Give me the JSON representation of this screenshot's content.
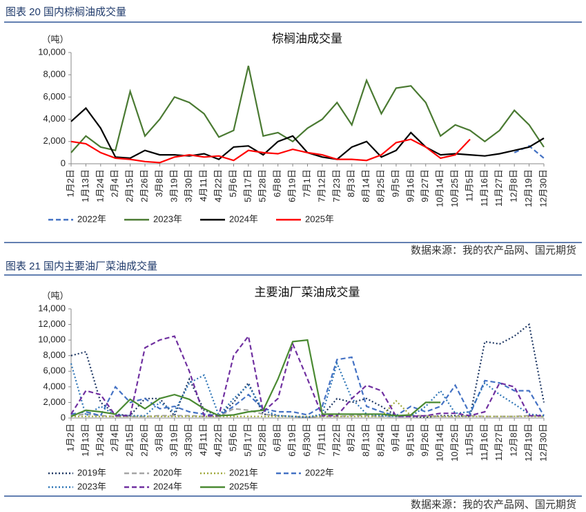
{
  "figures": [
    {
      "caption": "图表 20 国内棕榈油成交量",
      "source": "数据来源：我的农产品网、国元期货"
    },
    {
      "caption": "图表 21 国内主要油厂菜油成交量",
      "source": "数据来源：我的农产品网、国元期货"
    }
  ],
  "chart_data": [
    {
      "type": "line",
      "title": "棕榈油成交量",
      "y_unit": "（吨）",
      "categories": [
        "1月2日",
        "1月13日",
        "1月24日",
        "2月4日",
        "2月15日",
        "2月26日",
        "3月8日",
        "3月19日",
        "3月30日",
        "4月11日",
        "4月22日",
        "5月6日",
        "5月17日",
        "5月28日",
        "6月8日",
        "6月19日",
        "7月1日",
        "7月12日",
        "7月23日",
        "8月3日",
        "8月14日",
        "8月25日",
        "9月5日",
        "9月16日",
        "9月27日",
        "10月14日",
        "10月25日",
        "11月5日",
        "11月16日",
        "11月27日",
        "12月8日",
        "12月19日",
        "12月30日"
      ],
      "ylim": [
        0,
        10000
      ],
      "yticks": [
        0,
        {
          "value": 2000,
          "label": "2,000"
        },
        {
          "value": 4000,
          "label": "4,000"
        },
        {
          "value": 6000,
          "label": "6,000"
        },
        {
          "value": 8000,
          "label": "8,000"
        },
        {
          "value": 10000,
          "label": "10,000"
        }
      ],
      "grid": false,
      "legend_columns": 4,
      "series": [
        {
          "name": "2022年",
          "color": "#4472c4",
          "line_style": "dashed",
          "values": [
            null,
            null,
            null,
            null,
            null,
            null,
            null,
            null,
            null,
            null,
            null,
            null,
            null,
            null,
            null,
            null,
            null,
            null,
            null,
            null,
            null,
            null,
            null,
            null,
            null,
            null,
            null,
            null,
            null,
            null,
            1000,
            1600,
            500
          ]
        },
        {
          "name": "2023年",
          "color": "#4a7a32",
          "line_style": "solid",
          "values": [
            1000,
            2500,
            1500,
            1200,
            6500,
            2500,
            4000,
            6000,
            5500,
            4500,
            2400,
            3000,
            8800,
            2500,
            2800,
            2000,
            3200,
            4000,
            5500,
            3500,
            7500,
            4500,
            6800,
            7000,
            5500,
            2500,
            3500,
            3000,
            2000,
            3000,
            4800,
            3500,
            1500
          ]
        },
        {
          "name": "2024年",
          "color": "#000000",
          "line_style": "solid",
          "values": [
            3800,
            5000,
            3200,
            600,
            500,
            1200,
            800,
            800,
            700,
            900,
            400,
            1500,
            1600,
            800,
            2000,
            2500,
            1000,
            600,
            400,
            1500,
            2000,
            600,
            1200,
            2800,
            1500,
            800,
            900,
            800,
            700,
            900,
            1200,
            1500,
            2300
          ]
        },
        {
          "name": "2025年",
          "color": "#ff0000",
          "line_style": "solid",
          "values": [
            2000,
            1800,
            1000,
            500,
            400,
            200,
            100,
            600,
            800,
            600,
            700,
            300,
            1200,
            1000,
            900,
            1300,
            1000,
            800,
            400,
            400,
            300,
            800,
            1900,
            2200,
            1500,
            500,
            800,
            2200,
            null,
            null,
            null,
            null,
            null
          ]
        }
      ]
    },
    {
      "type": "line",
      "title": "主要油厂菜油成交量",
      "y_unit": "（吨）",
      "categories": [
        "1月2日",
        "1月13日",
        "1月24日",
        "2月4日",
        "2月15日",
        "2月26日",
        "3月8日",
        "3月19日",
        "3月30日",
        "4月11日",
        "4月22日",
        "5月6日",
        "5月17日",
        "5月28日",
        "6月8日",
        "6月19日",
        "6月30日",
        "7月11日",
        "7月22日",
        "8月2日",
        "8月13日",
        "8月24日",
        "9月4日",
        "9月15日",
        "9月26日",
        "10月14日",
        "10月25日",
        "11月5日",
        "11月16日",
        "11月27日",
        "12月8日",
        "12月19日",
        "12月30日"
      ],
      "ylim": [
        0,
        14000
      ],
      "yticks": [
        0,
        {
          "value": 2000,
          "label": "2,000"
        },
        {
          "value": 4000,
          "label": "4,000"
        },
        {
          "value": 6000,
          "label": "6,000"
        },
        {
          "value": 8000,
          "label": "8,000"
        },
        {
          "value": 10000,
          "label": "10,000"
        },
        {
          "value": 12000,
          "label": "12,000"
        },
        {
          "value": 14000,
          "label": "14,000"
        }
      ],
      "grid": false,
      "legend_columns": 4,
      "series": [
        {
          "name": "2019年",
          "color": "#1f3864",
          "line_style": "dotted",
          "values": [
            8000,
            8500,
            2000,
            500,
            300,
            2500,
            2500,
            300,
            5000,
            1000,
            300,
            2000,
            4500,
            500,
            300,
            200,
            100,
            300,
            2500,
            2000,
            2500,
            1500,
            300,
            200,
            100,
            300,
            300,
            200,
            9800,
            9500,
            10500,
            12000,
            2000
          ]
        },
        {
          "name": "2020年",
          "color": "#a5a5a5",
          "line_style": "dashed",
          "values": [
            300,
            500,
            300,
            200,
            200,
            200,
            300,
            300,
            300,
            200,
            200,
            1200,
            1000,
            500,
            300,
            200,
            100,
            200,
            200,
            300,
            300,
            200,
            200,
            300,
            300,
            200,
            200,
            300,
            200,
            200,
            200,
            300,
            200
          ]
        },
        {
          "name": "2021年",
          "color": "#9fa83a",
          "line_style": "dotted",
          "values": [
            200,
            200,
            200,
            200,
            200,
            200,
            200,
            200,
            200,
            200,
            200,
            200,
            200,
            200,
            200,
            200,
            200,
            200,
            200,
            200,
            200,
            200,
            2200,
            300,
            200,
            200,
            200,
            200,
            200,
            200,
            200,
            200,
            200
          ]
        },
        {
          "name": "2022年",
          "color": "#4472c4",
          "line_style": "dashed",
          "values": [
            500,
            800,
            300,
            4000,
            2000,
            2500,
            1200,
            1500,
            800,
            500,
            300,
            1500,
            3000,
            1200,
            800,
            800,
            400,
            1500,
            7500,
            7800,
            1500,
            800,
            300,
            1500,
            800,
            1500,
            4200,
            500,
            4800,
            4500,
            3500,
            3500,
            300
          ]
        },
        {
          "name": "2023年",
          "color": "#2e75b6",
          "line_style": "dotted",
          "values": [
            7000,
            300,
            1500,
            400,
            300,
            300,
            2000,
            800,
            4500,
            5500,
            300,
            2500,
            4200,
            1000,
            300,
            200,
            100,
            500,
            7000,
            2500,
            500,
            300,
            200,
            200,
            1500,
            3500,
            600,
            800,
            4500,
            3000,
            1800,
            500,
            300
          ]
        },
        {
          "name": "2024年",
          "color": "#7030a0",
          "line_style": "dashed",
          "values": [
            500,
            3500,
            3000,
            300,
            300,
            9000,
            10000,
            10500,
            6000,
            300,
            300,
            8000,
            10500,
            800,
            2500,
            9500,
            5000,
            300,
            300,
            2500,
            4200,
            3500,
            200,
            200,
            300,
            600,
            600,
            300,
            800,
            4500,
            4000,
            300,
            300
          ]
        },
        {
          "name": "2025年",
          "color": "#4a8a32",
          "line_style": "solid",
          "values": [
            200,
            1000,
            800,
            500,
            2400,
            1200,
            2500,
            3000,
            2400,
            1200,
            300,
            400,
            800,
            1000,
            5000,
            9800,
            10000,
            500,
            500,
            500,
            500,
            500,
            300,
            400,
            2000,
            2000,
            null,
            null,
            null,
            null,
            null,
            null,
            null
          ]
        }
      ]
    }
  ]
}
